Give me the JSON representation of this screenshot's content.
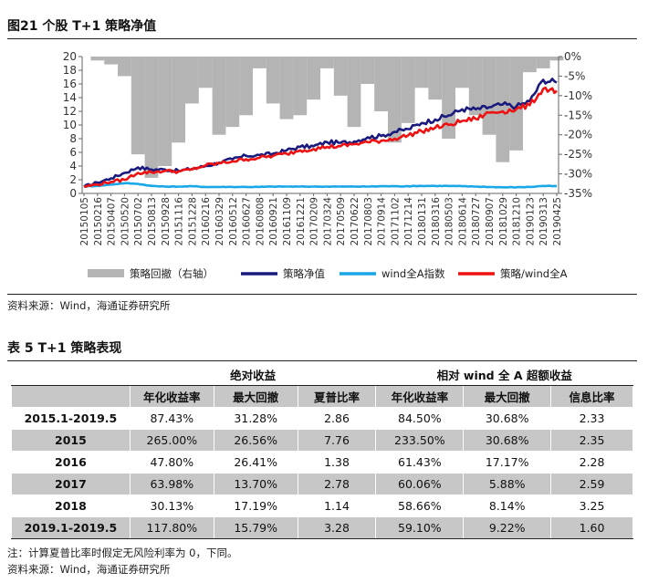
{
  "figure": {
    "caption": "图21 个股 T+1 策略净值",
    "source": "资料来源：Wind，海通证券研究所"
  },
  "chart_data": {
    "type": "line",
    "x": [
      "20150105",
      "20150216",
      "20150407",
      "20150520",
      "20150702",
      "20150813",
      "20150928",
      "20151116",
      "20151228",
      "20160216",
      "20160329",
      "20160512",
      "20160627",
      "20160808",
      "20160921",
      "20161109",
      "20161221",
      "20170209",
      "20170324",
      "20170509",
      "20170622",
      "20170803",
      "20170914",
      "20171102",
      "20171214",
      "20180131",
      "20180316",
      "20180503",
      "20180614",
      "20180727",
      "20180907",
      "20181029",
      "20181210",
      "20190123",
      "20190313",
      "20190425"
    ],
    "y_left": {
      "min": 0,
      "max": 20,
      "ticks": [
        0,
        2,
        4,
        6,
        8,
        10,
        12,
        14,
        16,
        18,
        20
      ]
    },
    "y_right": {
      "ticks": [
        "0%",
        "-5%",
        "-10%",
        "-15%",
        "-20%",
        "-25%",
        "-30%",
        "-35%"
      ]
    },
    "grid": false,
    "legend_position": "bottom",
    "series": [
      {
        "name": "策略回撤（右轴）",
        "kind": "area",
        "axis": "right",
        "color": "#b4b4b4",
        "values": [
          0,
          -1,
          -2,
          -5,
          -25,
          -31,
          -28,
          -22,
          -12,
          -8,
          -20,
          -18,
          -15,
          -3,
          -12,
          -16,
          -15,
          -11,
          -3,
          -10,
          -18,
          -7,
          -14,
          -22,
          -17,
          -8,
          -11,
          -21,
          -8,
          -15,
          -20,
          -27,
          -24,
          -4,
          -3,
          -1
        ]
      },
      {
        "name": "策略净值",
        "kind": "line",
        "axis": "left",
        "color": "#1a1a7e",
        "values": [
          1,
          1.6,
          2.2,
          3.0,
          3.8,
          3.5,
          3.5,
          3.3,
          3.6,
          4.0,
          4.5,
          5.0,
          5.5,
          5.6,
          5.8,
          6.3,
          6.8,
          6.9,
          7.5,
          7.4,
          7.6,
          8.2,
          8.4,
          9.0,
          9.4,
          10.3,
          10.8,
          11.4,
          12.3,
          12.3,
          12.6,
          13.0,
          12.7,
          13.5,
          16.6,
          16.2
        ]
      },
      {
        "name": "wind全A指数",
        "kind": "line",
        "axis": "left",
        "color": "#1aa7e8",
        "values": [
          1,
          1.1,
          1.3,
          1.5,
          1.4,
          1.1,
          1.0,
          1.0,
          1.05,
          0.95,
          0.95,
          0.95,
          0.95,
          0.95,
          1.0,
          1.0,
          1.0,
          1.0,
          1.0,
          1.0,
          1.0,
          1.0,
          1.05,
          1.05,
          1.05,
          1.1,
          1.1,
          1.1,
          1.05,
          1.0,
          0.95,
          0.9,
          0.9,
          0.95,
          1.1,
          1.05
        ]
      },
      {
        "name": "策略/wind全A",
        "kind": "line",
        "axis": "left",
        "color": "#ee1111",
        "values": [
          1,
          1.3,
          1.7,
          2.0,
          3.0,
          3.1,
          3.3,
          3.2,
          3.5,
          4.1,
          4.4,
          4.7,
          5.0,
          5.2,
          5.5,
          5.8,
          6.3,
          6.5,
          6.8,
          6.9,
          7.2,
          7.5,
          7.7,
          8.0,
          8.5,
          9.1,
          9.6,
          10.0,
          10.6,
          10.9,
          11.8,
          12.0,
          12.3,
          12.9,
          15.3,
          15.0
        ]
      }
    ]
  },
  "table": {
    "caption": "表 5 T+1 策略表现",
    "group_absolute": "绝对收益",
    "group_relative": "相对 wind 全 A 超额收益",
    "columns": [
      "年化收益率",
      "最大回撤",
      "夏普比率",
      "年化收益率",
      "最大回撤",
      "信息比率"
    ],
    "rows": [
      {
        "label": "2015.1-2019.5",
        "cells": [
          "87.43%",
          "31.28%",
          "2.86",
          "84.50%",
          "30.68%",
          "2.33"
        ]
      },
      {
        "label": "2015",
        "cells": [
          "265.00%",
          "26.56%",
          "7.76",
          "233.50%",
          "30.68%",
          "2.35"
        ]
      },
      {
        "label": "2016",
        "cells": [
          "47.80%",
          "26.41%",
          "1.38",
          "61.43%",
          "17.17%",
          "2.28"
        ]
      },
      {
        "label": "2017",
        "cells": [
          "63.98%",
          "13.70%",
          "2.78",
          "60.06%",
          "5.88%",
          "2.59"
        ]
      },
      {
        "label": "2018",
        "cells": [
          "30.13%",
          "17.19%",
          "1.14",
          "58.66%",
          "8.14%",
          "3.25"
        ]
      },
      {
        "label": "2019.1-2019.5",
        "cells": [
          "117.80%",
          "15.79%",
          "3.28",
          "59.10%",
          "9.22%",
          "1.60"
        ]
      }
    ],
    "note": "注：计算夏普比率时假定无风险利率为 0，下同。",
    "source": "资料来源：Wind，海通证券研究所"
  }
}
